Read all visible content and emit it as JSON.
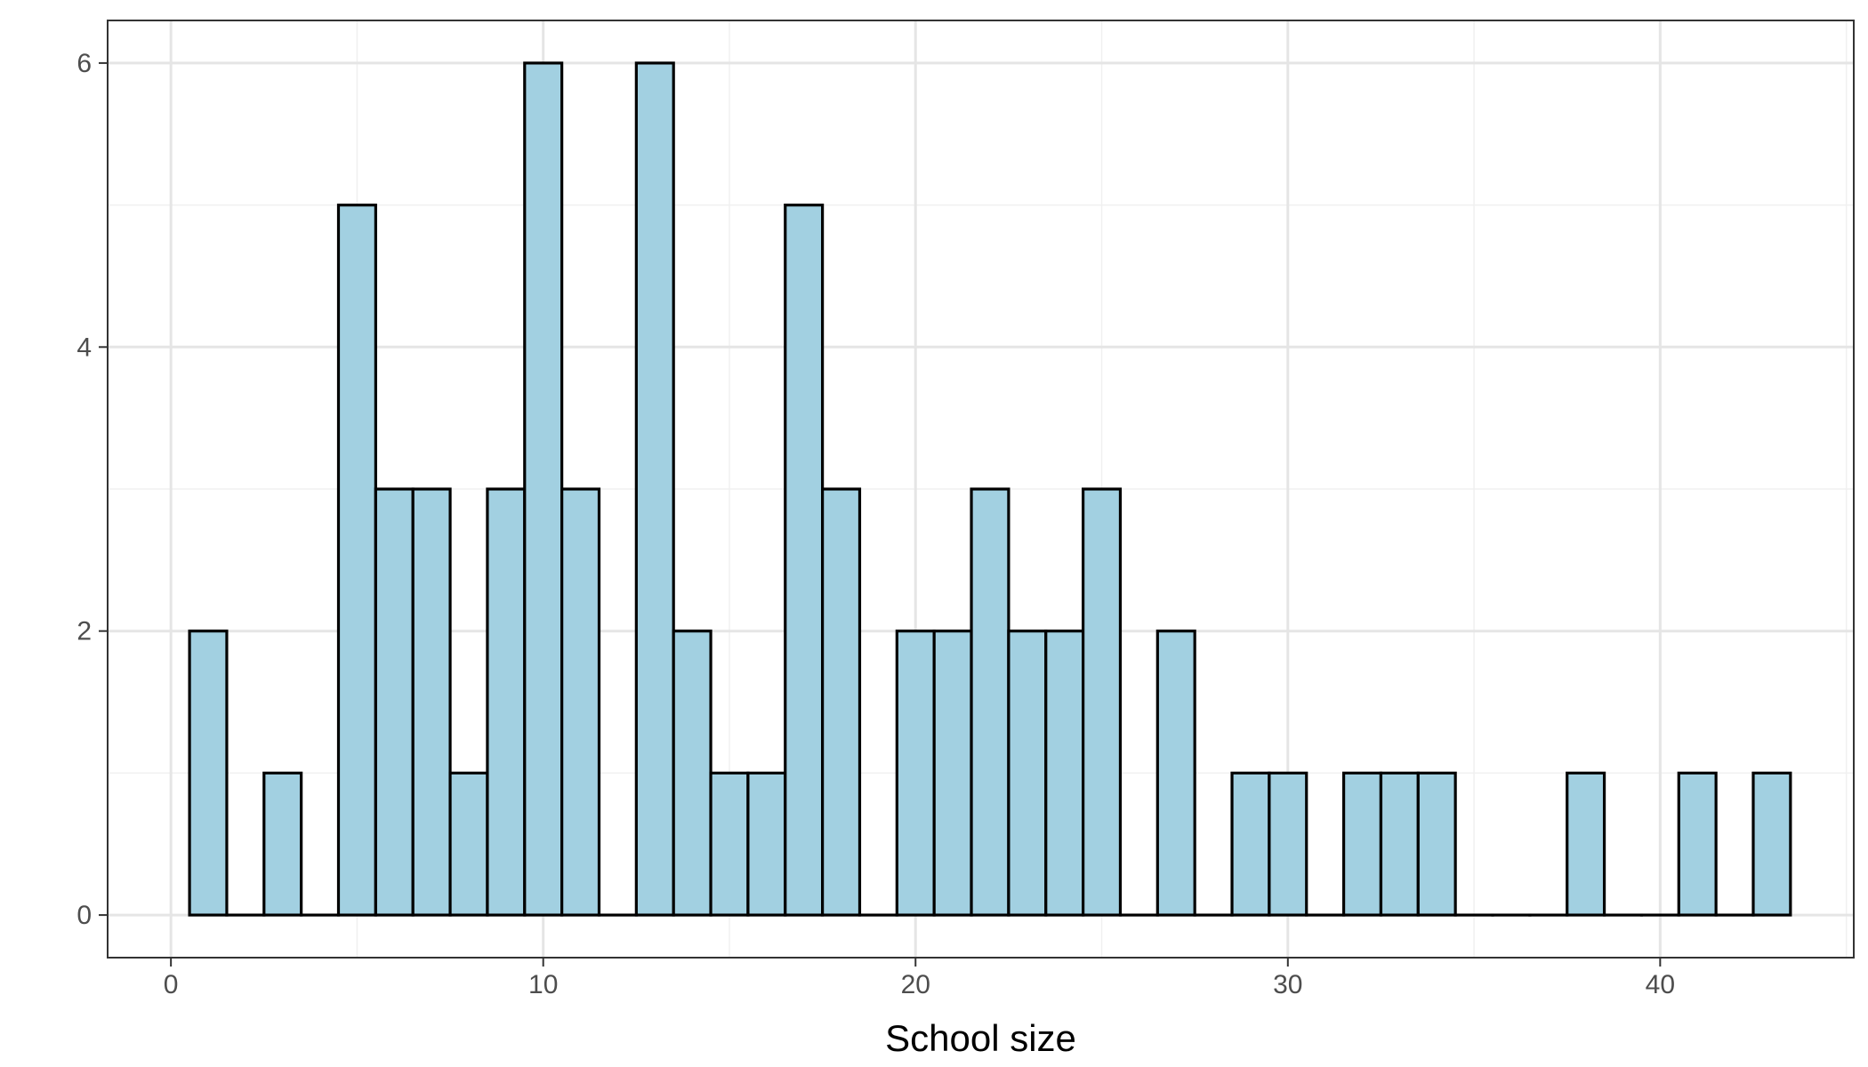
{
  "chart_data": {
    "type": "bar",
    "subtype": "histogram",
    "title": "",
    "xlabel": "School size",
    "ylabel": "",
    "bin_width": 1,
    "xlim": [
      -1.7,
      45.2
    ],
    "ylim": [
      -0.3,
      6.3
    ],
    "x_ticks": [
      0,
      10,
      20,
      30,
      40
    ],
    "y_ticks": [
      0,
      2,
      4,
      6
    ],
    "x_tick_labels": [
      "0",
      "10",
      "20",
      "30",
      "40"
    ],
    "y_tick_labels": [
      "0",
      "2",
      "4",
      "6"
    ],
    "grid": true,
    "legend": "none",
    "x": [
      1,
      2,
      3,
      4,
      5,
      6,
      7,
      8,
      9,
      10,
      11,
      12,
      13,
      14,
      15,
      16,
      17,
      18,
      19,
      20,
      21,
      22,
      23,
      24,
      25,
      26,
      27,
      28,
      29,
      30,
      31,
      32,
      33,
      34,
      35,
      36,
      37,
      38,
      39,
      40,
      41,
      42,
      43
    ],
    "values": [
      2,
      0,
      1,
      0,
      5,
      3,
      3,
      1,
      3,
      6,
      3,
      0,
      6,
      2,
      1,
      1,
      5,
      3,
      0,
      2,
      2,
      3,
      2,
      2,
      3,
      0,
      2,
      0,
      1,
      1,
      0,
      1,
      1,
      1,
      0,
      0,
      0,
      1,
      0,
      0,
      1,
      0,
      1
    ],
    "colors": {
      "bar_fill": "#a2d0e1",
      "bar_stroke": "#000000",
      "panel_border": "#333333",
      "grid_major": "#e5e5e5",
      "grid_minor": "#f0f0f0",
      "tick_text": "#4d4d4d"
    }
  }
}
